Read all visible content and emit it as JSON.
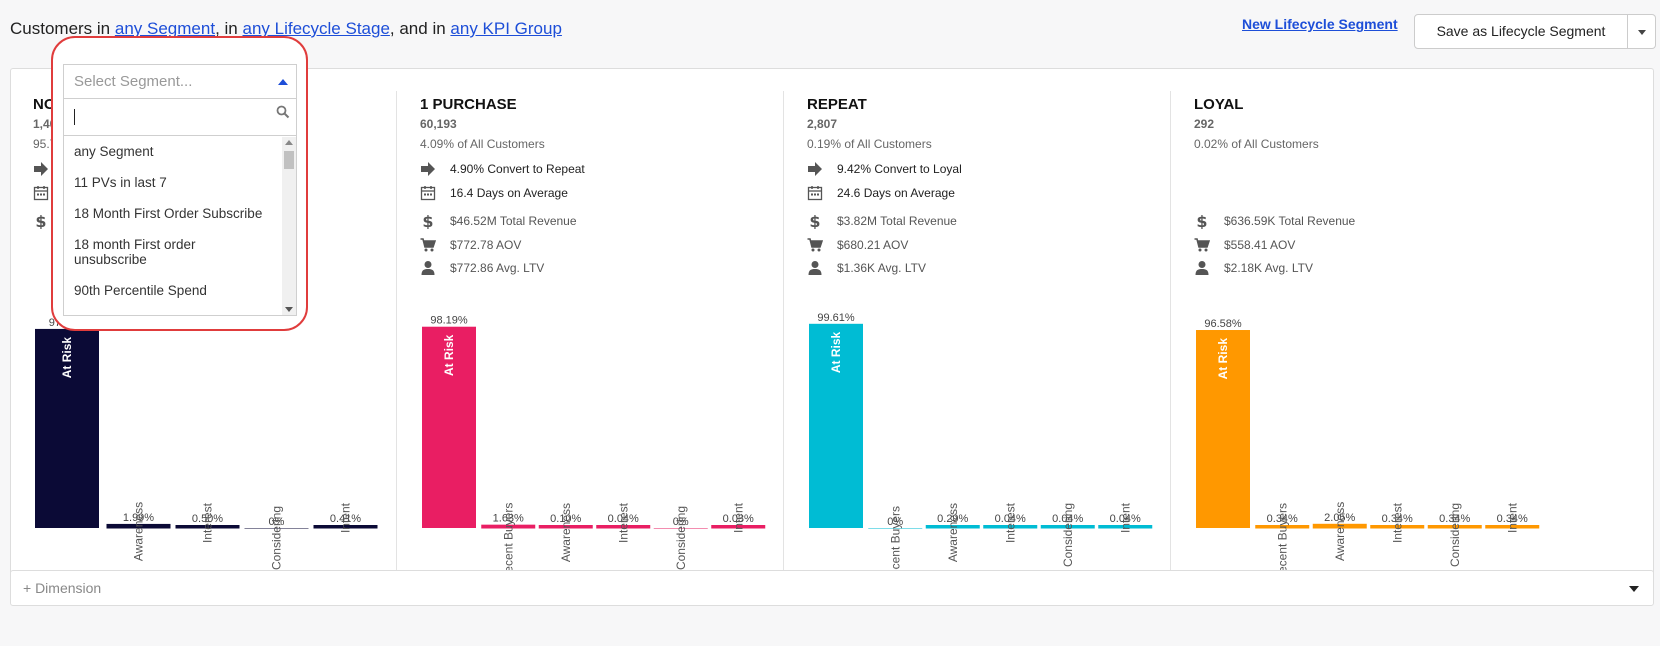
{
  "header": {
    "prefix": "Customers in",
    "segment_link": "any Segment",
    "mid1": ", in",
    "lifecycle_link": "any Lifecycle Stage",
    "mid2": ", and in",
    "kpi_link": "any KPI Group",
    "new_segment_link": "New Lifecycle Segment",
    "save_button": "Save as Lifecycle Segment"
  },
  "dropdown": {
    "placeholder": "Select Segment...",
    "search_value": "",
    "items": [
      "any Segment",
      "11 PVs in last 7",
      "18 Month First Order Subscribe",
      "18 month First order",
      "unsubscribe",
      "90th Percentile Spend"
    ]
  },
  "stages": [
    {
      "name": "NO",
      "count": "1,409",
      "pct": "95.70",
      "metrics": [],
      "color": "#0b0a36"
    },
    {
      "name": "1 PURCHASE",
      "count": "60,193",
      "pct": "4.09% of All Customers",
      "metrics": [
        {
          "icon": "arrow-icon",
          "text": "4.90% Convert to Repeat",
          "dark": true
        },
        {
          "icon": "calendar-icon",
          "text": "16.4 Days on Average",
          "dark": true
        },
        {
          "icon": "dollar-icon",
          "text": "$46.52M Total Revenue",
          "dark": false
        },
        {
          "icon": "cart-icon",
          "text": "$772.78 AOV",
          "dark": false
        },
        {
          "icon": "user-icon",
          "text": "$772.86 Avg. LTV",
          "dark": false
        }
      ],
      "color": "#e91e63"
    },
    {
      "name": "REPEAT",
      "count": "2,807",
      "pct": "0.19% of All Customers",
      "metrics": [
        {
          "icon": "arrow-icon",
          "text": "9.42% Convert to Loyal",
          "dark": true
        },
        {
          "icon": "calendar-icon",
          "text": "24.6 Days on Average",
          "dark": true
        },
        {
          "icon": "dollar-icon",
          "text": "$3.82M Total Revenue",
          "dark": false
        },
        {
          "icon": "cart-icon",
          "text": "$680.21 AOV",
          "dark": false
        },
        {
          "icon": "user-icon",
          "text": "$1.36K Avg. LTV",
          "dark": false
        }
      ],
      "color": "#00bcd4"
    },
    {
      "name": "LOYAL",
      "count": "292",
      "pct": "0.02% of All Customers",
      "metrics": [
        {
          "icon": "dollar-icon",
          "text": "$636.59K Total Revenue",
          "dark": false
        },
        {
          "icon": "cart-icon",
          "text": "$558.41 AOV",
          "dark": false
        },
        {
          "icon": "user-icon",
          "text": "$2.18K Avg. LTV",
          "dark": false
        }
      ],
      "color": "#ff9800"
    }
  ],
  "chart_data": [
    {
      "type": "bar",
      "categories": [
        "At Risk",
        "Awareness",
        "Interest",
        "Considering",
        "Intent"
      ],
      "values": [
        97.11,
        1.99,
        0.5,
        0,
        0.41
      ],
      "labels": [
        "97.11%",
        "1.99%",
        "0.50%",
        "0%",
        "0.41%"
      ],
      "ylim": [
        0,
        100
      ]
    },
    {
      "type": "bar",
      "categories": [
        "At Risk",
        "Recent Buyers",
        "Awareness",
        "Interest",
        "Considering",
        "Intent"
      ],
      "values": [
        98.19,
        1.63,
        0.1,
        0.04,
        0,
        0.03
      ],
      "labels": [
        "98.19%",
        "1.63%",
        "0.10%",
        "0.04%",
        "0%",
        "0.03%"
      ],
      "ylim": [
        0,
        100
      ]
    },
    {
      "type": "bar",
      "categories": [
        "At Risk",
        "Recent Buyers",
        "Awareness",
        "Interest",
        "Considering",
        "Intent"
      ],
      "values": [
        99.61,
        0,
        0.29,
        0.04,
        0.04,
        0.04
      ],
      "labels": [
        "99.61%",
        "0%",
        "0.29%",
        "0.04%",
        "0.04%",
        "0.04%"
      ],
      "ylim": [
        0,
        100
      ]
    },
    {
      "type": "bar",
      "categories": [
        "At Risk",
        "Recent Buyers",
        "Awareness",
        "Interest",
        "Considering",
        "Intent"
      ],
      "values": [
        96.58,
        0.34,
        2.05,
        0.34,
        0.34,
        0.34
      ],
      "labels": [
        "96.58%",
        "0.34%",
        "2.05%",
        "0.34%",
        "0.34%",
        "0.34%"
      ],
      "ylim": [
        0,
        100
      ]
    }
  ],
  "dimension": {
    "label": "+ Dimension"
  }
}
